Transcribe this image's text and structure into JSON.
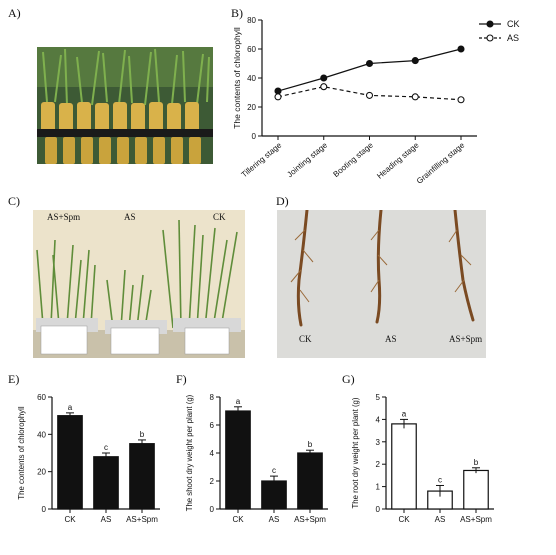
{
  "panels": {
    "a": "A)",
    "b": "B)",
    "c": "C)",
    "d": "D)",
    "e": "E)",
    "f": "F)",
    "g": "G)"
  },
  "photo_c": {
    "labels": [
      "AS+Spm",
      "AS",
      "CK"
    ]
  },
  "photo_d": {
    "labels": [
      "CK",
      "AS",
      "AS+Spm"
    ]
  },
  "colors": {
    "ink": "#111111",
    "bar_black": "#111111",
    "bar_white": "#ffffff"
  },
  "chart_data": [
    {
      "id": "B",
      "type": "line",
      "ylabel": "The contents of  chlorophyll",
      "xlabel": "",
      "categories": [
        "Tillering stage",
        "Jointing stage",
        "Booting stage",
        "Heading stage",
        "Grainfilling stage"
      ],
      "ylim": [
        0,
        80
      ],
      "yticks": [
        0,
        20,
        40,
        60,
        80
      ],
      "legend_position": "top-right",
      "series": [
        {
          "name": "CK",
          "style": "solid-filled",
          "values": [
            31,
            40,
            50,
            52,
            60
          ]
        },
        {
          "name": "AS",
          "style": "dashed-open",
          "values": [
            27,
            34,
            28,
            27,
            25
          ]
        }
      ]
    },
    {
      "id": "E",
      "type": "bar",
      "ylabel": "The contents of chlorophyll",
      "categories": [
        "CK",
        "AS",
        "AS+Spm"
      ],
      "values": [
        50,
        28,
        35
      ],
      "errors": [
        1.5,
        2,
        2
      ],
      "letters": [
        "a",
        "c",
        "b"
      ],
      "ylim": [
        0,
        60
      ],
      "yticks": [
        0,
        20,
        40,
        60
      ],
      "fill": "black"
    },
    {
      "id": "F",
      "type": "bar",
      "ylabel": "The shoot dry weight per plant (g)",
      "categories": [
        "CK",
        "AS",
        "AS+Spm"
      ],
      "values": [
        7.0,
        2.0,
        4.0
      ],
      "errors": [
        0.3,
        0.35,
        0.2
      ],
      "letters": [
        "a",
        "c",
        "b"
      ],
      "ylim": [
        0,
        8
      ],
      "yticks": [
        0,
        2,
        4,
        6,
        8
      ],
      "fill": "black"
    },
    {
      "id": "G",
      "type": "bar",
      "ylabel": "The root dry weight per plant (g)",
      "categories": [
        "CK",
        "AS",
        "AS+Spm"
      ],
      "values": [
        3.8,
        0.8,
        1.72
      ],
      "errors": [
        0.2,
        0.25,
        0.12
      ],
      "letters": [
        "a",
        "c",
        "b"
      ],
      "ylim": [
        0,
        5
      ],
      "yticks": [
        0,
        1,
        2,
        3,
        4,
        5
      ],
      "fill": "white"
    }
  ]
}
